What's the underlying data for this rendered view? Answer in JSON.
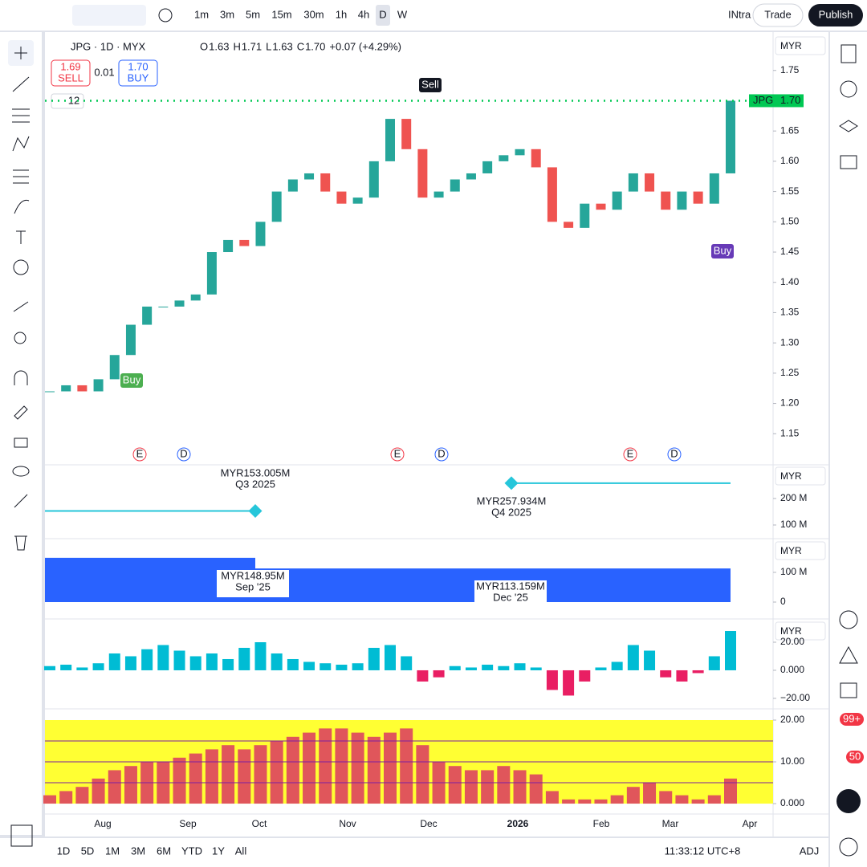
{
  "toolbar": {
    "intervals": [
      "1m",
      "3m",
      "5m",
      "15m",
      "30m",
      "1h",
      "4h",
      "D",
      "W"
    ],
    "layout_label": "INtra",
    "trade": "Trade",
    "publish": "Publish"
  },
  "symbol": {
    "name": "JPG · 1D · MYX",
    "open_label": "O",
    "open": "1.63",
    "high_label": "H",
    "high": "1.71",
    "low_label": "L",
    "low": "1.63",
    "close_label": "C",
    "close": "1.70",
    "change": "+0.07 (+4.29%)"
  },
  "order": {
    "sell_price": "1.69",
    "sell": "SELL",
    "spread": "0.01",
    "buy_price": "1.70",
    "buy": "BUY"
  },
  "currency": "MYR",
  "main": {
    "ylim": [
      1.1,
      1.808
    ],
    "yticks": [
      1.75,
      {
        "value": 1.7,
        "label": "1.70"
      },
      1.65,
      {
        "value": 1.6,
        "label": "1.60"
      },
      1.55,
      {
        "value": 1.5,
        "label": "1.50"
      },
      1.45,
      {
        "value": 1.4,
        "label": "1.40"
      },
      1.35,
      {
        "value": 1.3,
        "label": "1.30"
      },
      1.25,
      {
        "value": 1.2,
        "label": "1.20"
      },
      1.15
    ],
    "closes": [
      1.22,
      1.23,
      1.22,
      1.24,
      1.28,
      1.33,
      1.36,
      1.36,
      1.37,
      1.38,
      1.45,
      1.47,
      1.46,
      1.5,
      1.55,
      1.57,
      1.58,
      1.55,
      1.53,
      1.54,
      1.6,
      1.67,
      1.62,
      1.54,
      1.55,
      1.57,
      1.58,
      1.6,
      1.61,
      1.62,
      1.59,
      1.5,
      1.49,
      1.53,
      1.52,
      1.55,
      1.58,
      1.55,
      1.52,
      1.55,
      1.53,
      1.58,
      1.7
    ],
    "last_price": {
      "symbol": "JPG",
      "value": 1.7,
      "label": "1.70"
    },
    "indicator_count": "12",
    "sell_signal": "Sell",
    "buy_signal_early": "Buy",
    "buy_signal": "Buy",
    "events": [
      "E",
      "D",
      "E",
      "D",
      "E",
      "D"
    ]
  },
  "date_labels": [
    "Aug",
    "Sep",
    "Oct",
    "Nov",
    "Dec",
    "2026",
    "Feb",
    "Mar",
    "Apr"
  ],
  "pane2": {
    "ylim": [
      51.5,
      324
    ],
    "yticks": [
      {
        "value": 200,
        "label": "200 M"
      },
      {
        "value": 100,
        "label": "100 M"
      }
    ],
    "points": [
      {
        "value": 153.005,
        "label": "MYR153.005M",
        "period": "Q3 2025"
      },
      {
        "value": 257.934,
        "label": "MYR257.934M",
        "period": "Q4 2025"
      }
    ]
  },
  "pane3": {
    "ylim": [
      -54,
      208
    ],
    "yticks": [
      {
        "value": 100,
        "label": "100 M"
      },
      0
    ],
    "points": [
      {
        "value": 148.95,
        "label": "MYR148.95M",
        "period": "Sep '25"
      },
      {
        "value": 113.159,
        "label": "MYR113.159M",
        "period": "Dec '25"
      }
    ]
  },
  "pane4": {
    "ylim": [
      -26.9,
      34.3
    ],
    "yticks": [
      {
        "value": 20,
        "label": "20.00"
      },
      {
        "value": 0,
        "label": "0.000"
      },
      {
        "value": -20,
        "label": "−20.00"
      }
    ],
    "values": [
      3,
      4,
      2,
      5,
      12,
      10,
      15,
      18,
      14,
      10,
      12,
      8,
      16,
      20,
      12,
      8,
      6,
      5,
      4,
      5,
      16,
      18,
      10,
      -8,
      -5,
      3,
      2,
      4,
      3,
      5,
      2,
      -14,
      -18,
      -8,
      2,
      6,
      18,
      14,
      -5,
      -8,
      -2,
      10,
      28
    ]
  },
  "pane5": {
    "ylim": [
      -2.3,
      22.5
    ],
    "yticks": [
      {
        "value": 20,
        "label": "20.00"
      },
      {
        "value": 10,
        "label": "10.00"
      },
      {
        "value": 0,
        "label": "0.000"
      }
    ],
    "values": [
      2,
      3,
      4,
      6,
      8,
      9,
      10,
      10,
      11,
      12,
      13,
      14,
      13,
      14,
      15,
      16,
      17,
      18,
      18,
      17,
      16,
      17,
      18,
      14,
      10,
      9,
      8,
      8,
      9,
      8,
      7,
      3,
      1,
      1,
      1,
      2,
      4,
      5,
      3,
      2,
      1,
      2,
      6
    ]
  },
  "bottom": {
    "ranges": [
      "1D",
      "5D",
      "1M",
      "3M",
      "6M",
      "YTD",
      "1Y",
      "All"
    ],
    "time": "11:33:12 UTC+8",
    "adj": "ADJ"
  },
  "badges": {
    "alerts": "99+",
    "notifications": "50"
  }
}
